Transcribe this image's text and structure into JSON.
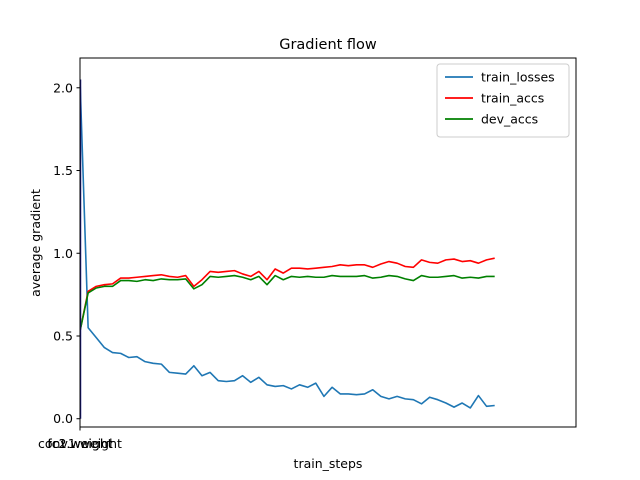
{
  "chart_data": {
    "type": "line",
    "title": "Gradient flow",
    "xlabel": "train_steps",
    "ylabel": "average gradient",
    "x_tick_labels": [
      "conv1.weight",
      "fc2.weight",
      "fc1.weight"
    ],
    "y_ticks": [
      0.0,
      0.5,
      1.0,
      1.5,
      2.0
    ],
    "y_tick_labels": [
      "0.0",
      "0.5",
      "1.0",
      "1.5",
      "2.0"
    ],
    "ylim": [
      -0.05,
      2.18
    ],
    "xlim": [
      0,
      61
    ],
    "grid": false,
    "legend_position": "top-right",
    "series": [
      {
        "name": "train_losses",
        "color": "#1f77b4",
        "values": [
          2.05,
          0.55,
          0.49,
          0.43,
          0.4,
          0.395,
          0.37,
          0.375,
          0.345,
          0.335,
          0.33,
          0.28,
          0.275,
          0.27,
          0.32,
          0.26,
          0.28,
          0.23,
          0.225,
          0.23,
          0.26,
          0.22,
          0.25,
          0.205,
          0.195,
          0.2,
          0.18,
          0.205,
          0.19,
          0.215,
          0.135,
          0.19,
          0.15,
          0.15,
          0.145,
          0.15,
          0.175,
          0.135,
          0.12,
          0.135,
          0.12,
          0.115,
          0.09,
          0.13,
          0.115,
          0.095,
          0.07,
          0.095,
          0.065,
          0.14,
          0.075,
          0.08
        ]
      },
      {
        "name": "train_accs",
        "color": "#ff0000",
        "values": [
          0.53,
          0.77,
          0.8,
          0.81,
          0.815,
          0.85,
          0.85,
          0.855,
          0.86,
          0.865,
          0.87,
          0.86,
          0.855,
          0.865,
          0.8,
          0.84,
          0.89,
          0.885,
          0.89,
          0.895,
          0.875,
          0.86,
          0.89,
          0.84,
          0.905,
          0.88,
          0.91,
          0.91,
          0.905,
          0.91,
          0.915,
          0.92,
          0.93,
          0.925,
          0.93,
          0.93,
          0.915,
          0.935,
          0.95,
          0.94,
          0.92,
          0.915,
          0.96,
          0.945,
          0.94,
          0.96,
          0.965,
          0.95,
          0.955,
          0.94,
          0.96,
          0.97
        ]
      },
      {
        "name": "dev_accs",
        "color": "#008000",
        "values": [
          0.53,
          0.76,
          0.79,
          0.8,
          0.8,
          0.835,
          0.835,
          0.83,
          0.84,
          0.835,
          0.845,
          0.84,
          0.84,
          0.845,
          0.785,
          0.81,
          0.86,
          0.855,
          0.86,
          0.865,
          0.855,
          0.84,
          0.86,
          0.81,
          0.865,
          0.84,
          0.86,
          0.855,
          0.86,
          0.855,
          0.855,
          0.865,
          0.86,
          0.86,
          0.86,
          0.865,
          0.85,
          0.855,
          0.865,
          0.86,
          0.845,
          0.835,
          0.865,
          0.855,
          0.855,
          0.86,
          0.865,
          0.85,
          0.855,
          0.85,
          0.86,
          0.86
        ]
      }
    ]
  }
}
